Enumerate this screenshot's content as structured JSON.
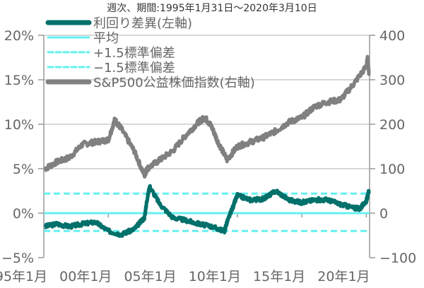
{
  "title": "週次、期間:1995年1月31日～2020年3月10日",
  "colors": {
    "spread": "#00706a",
    "mean": "#66f0f0",
    "band": "#66f0f0",
    "sp500": "#808080",
    "grid": "#cccccc",
    "axis": "#999999"
  },
  "chart_data": {
    "type": "line",
    "title": "週次、期間:1995年1月31日～2020年3月10日",
    "xlabel": "",
    "ylabel": "",
    "y2label": "",
    "x_tick_labels": [
      "95年1月",
      "00年1月",
      "05年1月",
      "10年1月",
      "15年1月",
      "20年1月"
    ],
    "y_left": {
      "ticks": [
        "20%",
        "15%",
        "10%",
        "5%",
        "0%",
        "−5%"
      ],
      "range": [
        -5,
        20
      ]
    },
    "y_right": {
      "ticks": [
        "400",
        "300",
        "200",
        "100",
        "0",
        "−100"
      ],
      "range": [
        -100,
        400
      ]
    },
    "grid": "horizontal",
    "legend_position": "top-left inside",
    "series": [
      {
        "name": "利回り差異(左軸)",
        "axis": "left",
        "style": "solid-thick",
        "color": "#00706a",
        "x": [
          1995.1,
          1996,
          1997,
          1998,
          1999,
          2000,
          2001,
          2002,
          2002.8,
          2003,
          2003.2,
          2004,
          2005,
          2006,
          2007,
          2008,
          2009,
          2009.2,
          2009.6,
          2010,
          2011,
          2012,
          2013,
          2014,
          2015,
          2016,
          2017,
          2018,
          2019,
          2019.5,
          2020,
          2020.2
        ],
        "values": [
          -1.5,
          -1.2,
          -1.5,
          -1.2,
          -1.0,
          -2.0,
          -2.4,
          -1.8,
          -0.5,
          1.5,
          3.0,
          1.0,
          -0.5,
          -0.8,
          -1.2,
          -1.5,
          -2.0,
          -1.0,
          0.5,
          2.0,
          1.5,
          1.6,
          2.5,
          1.5,
          1.2,
          1.5,
          1.5,
          1.0,
          0.6,
          0.5,
          1.4,
          2.5
        ]
      },
      {
        "name": "平均",
        "axis": "left",
        "style": "solid",
        "color": "#66f0f0",
        "values": [
          0
        ]
      },
      {
        "name": "+1.5標準偏差",
        "axis": "left",
        "style": "dashed",
        "color": "#66f0f0",
        "values": [
          2.2
        ]
      },
      {
        "name": "−1.5標準偏差",
        "axis": "left",
        "style": "dashed",
        "color": "#66f0f0",
        "values": [
          -2.0
        ]
      },
      {
        "name": "S&P500公益株価指数(右軸)",
        "axis": "right",
        "style": "solid-thick",
        "color": "#808080",
        "x": [
          1995.1,
          1996,
          1997,
          1998,
          1999,
          2000,
          2000.5,
          2001,
          2002,
          2002.8,
          2003,
          2004,
          2005,
          2006,
          2007,
          2007.5,
          2008,
          2008.5,
          2009.2,
          2010,
          2011,
          2012,
          2013,
          2014,
          2015,
          2016,
          2017,
          2018,
          2019,
          2020,
          2020.1,
          2020.2
        ],
        "values": [
          100,
          115,
          125,
          155,
          160,
          165,
          210,
          190,
          140,
          85,
          100,
          120,
          140,
          175,
          205,
          215,
          195,
          160,
          120,
          150,
          160,
          170,
          185,
          205,
          215,
          240,
          250,
          255,
          290,
          330,
          350,
          315
        ]
      }
    ]
  },
  "legend": [
    {
      "label": "利回り差異(左軸)"
    },
    {
      "label": "平均"
    },
    {
      "label": "+1.5標準偏差"
    },
    {
      "label": "−1.5標準偏差"
    },
    {
      "label": "S&P500公益株価指数(右軸)"
    }
  ]
}
